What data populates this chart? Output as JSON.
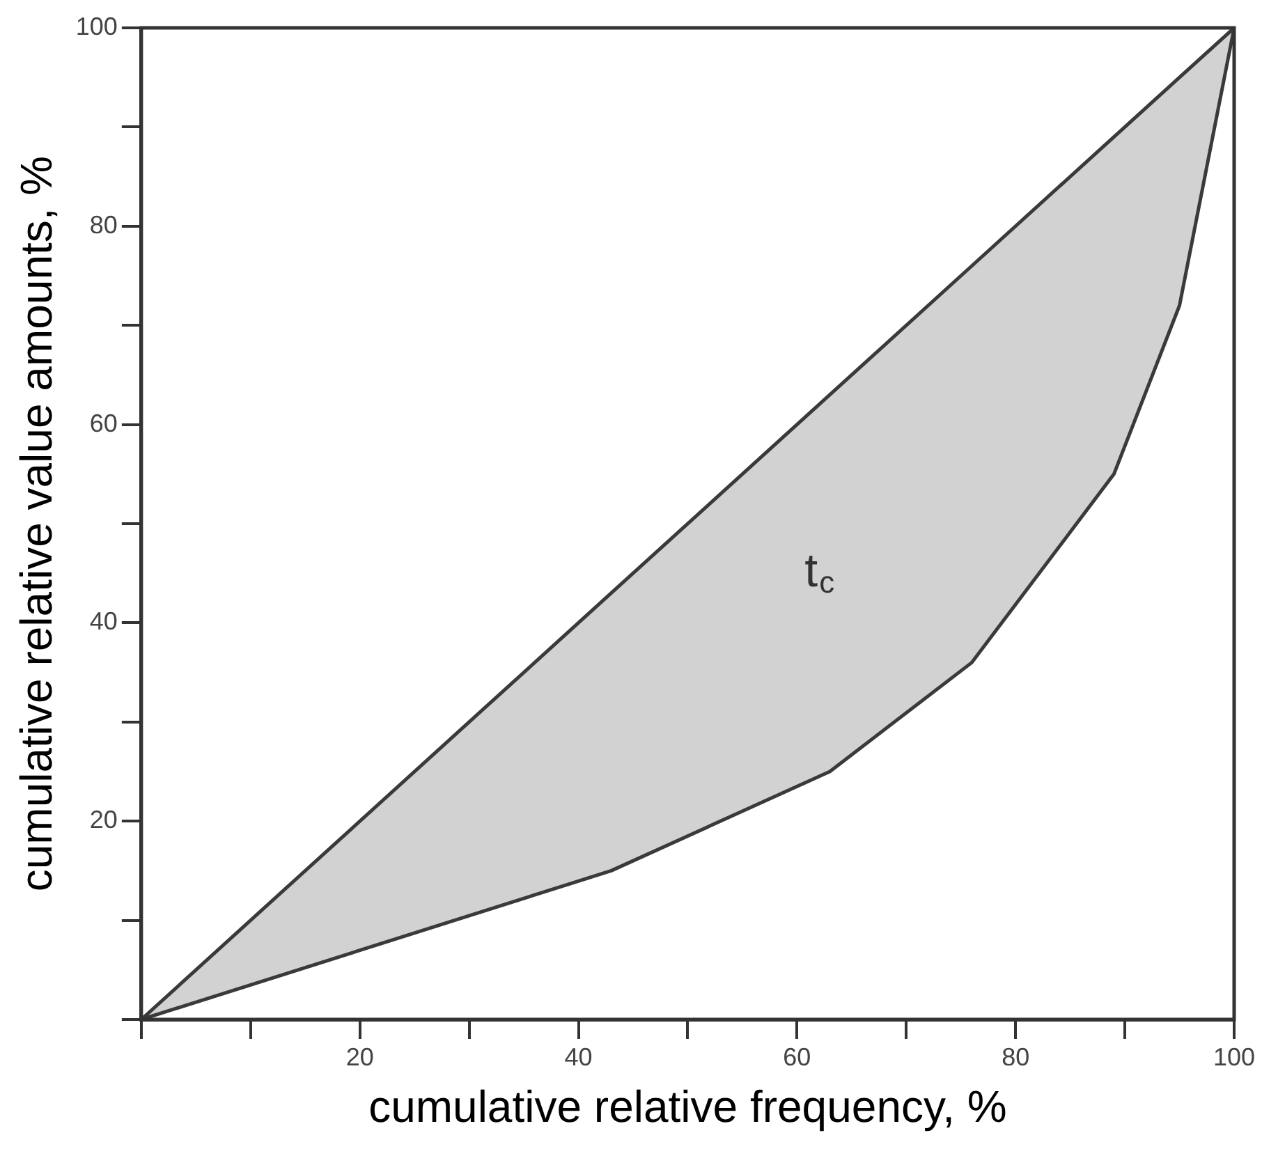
{
  "chart_data": {
    "type": "line",
    "xlabel": "cumulative relative frequency, %",
    "ylabel": "cumulative relative value amounts, %",
    "xlim": [
      0,
      100
    ],
    "ylim": [
      0,
      100
    ],
    "xticks": [
      {
        "value": 0,
        "label": null
      },
      {
        "value": 10,
        "label": null
      },
      20,
      {
        "value": 30,
        "label": null
      },
      40,
      {
        "value": 50,
        "label": null
      },
      60,
      {
        "value": 70,
        "label": null
      },
      80,
      {
        "value": 90,
        "label": null
      },
      100
    ],
    "yticks": [
      {
        "value": 0,
        "label": null
      },
      {
        "value": 10,
        "label": null
      },
      20,
      {
        "value": 30,
        "label": null
      },
      40,
      {
        "value": 50,
        "label": null
      },
      60,
      {
        "value": 70,
        "label": null
      },
      80,
      {
        "value": 90,
        "label": null
      },
      100
    ],
    "grid": false,
    "legend": false,
    "marker": "none",
    "series": [
      {
        "type": "line",
        "color": "#3a3a3a",
        "x": [
          0,
          43,
          63,
          76,
          89,
          95,
          100
        ],
        "values": [
          0,
          43,
          63,
          76,
          89,
          95,
          100
        ],
        "lower": [
          0,
          15,
          25,
          36,
          55,
          72,
          100
        ],
        "upper": [
          0,
          43,
          63,
          76,
          89,
          95,
          100
        ]
      },
      {
        "type": "line",
        "color": "#3a3a3a",
        "x": [
          0,
          43,
          63,
          76,
          89,
          95,
          100
        ],
        "values": [
          0,
          15,
          25,
          36,
          55,
          72,
          100
        ]
      }
    ],
    "annotations": [
      "t$_{c}$"
    ]
  }
}
